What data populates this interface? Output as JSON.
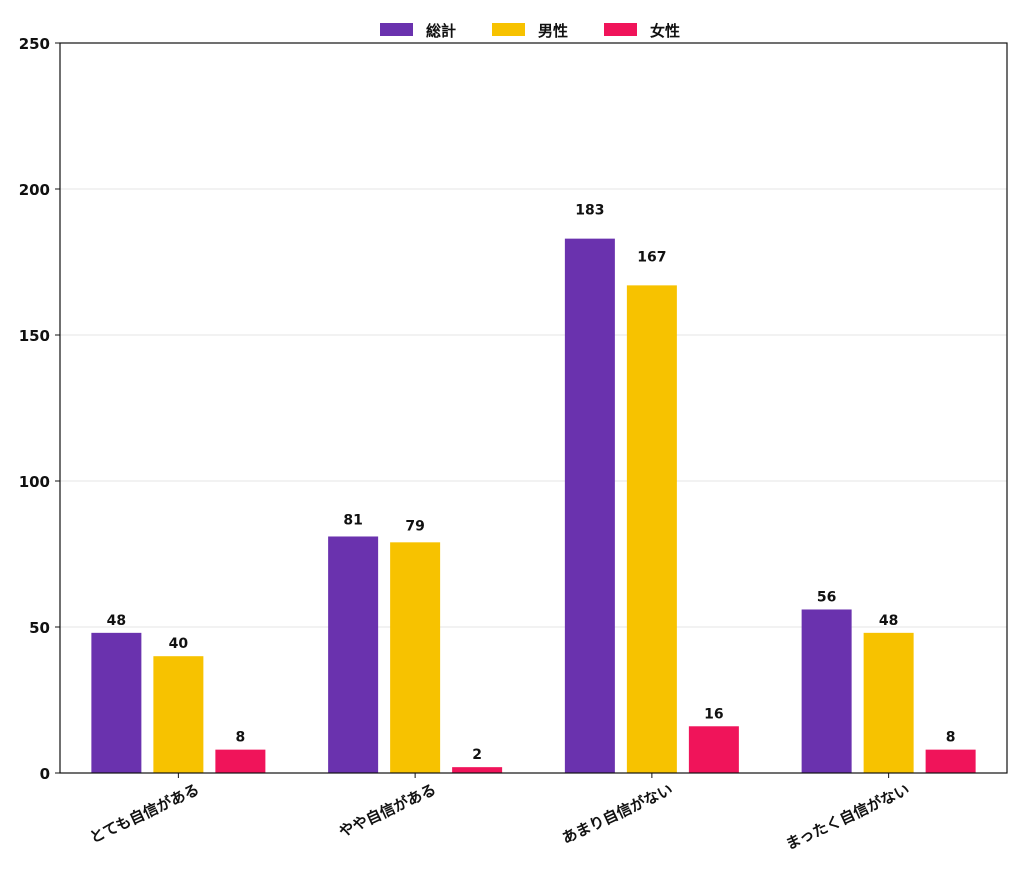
{
  "chart_data": {
    "type": "bar",
    "categories": [
      "とても自信がある",
      "やや自信がある",
      "あまり自信がない",
      "まったく自信がない"
    ],
    "series": [
      {
        "name": "総計",
        "color": "#6a32ae",
        "values": [
          48,
          81,
          183,
          56
        ]
      },
      {
        "name": "男性",
        "color": "#f7c200",
        "values": [
          40,
          79,
          167,
          48
        ]
      },
      {
        "name": "女性",
        "color": "#f0145a",
        "values": [
          8,
          2,
          16,
          8
        ]
      }
    ],
    "ylim": [
      0,
      250
    ],
    "yticks": [
      0,
      50,
      100,
      150,
      200,
      250
    ],
    "grid": "horizontal",
    "legend_position": "top-center",
    "title": "",
    "xlabel": "",
    "ylabel": ""
  }
}
